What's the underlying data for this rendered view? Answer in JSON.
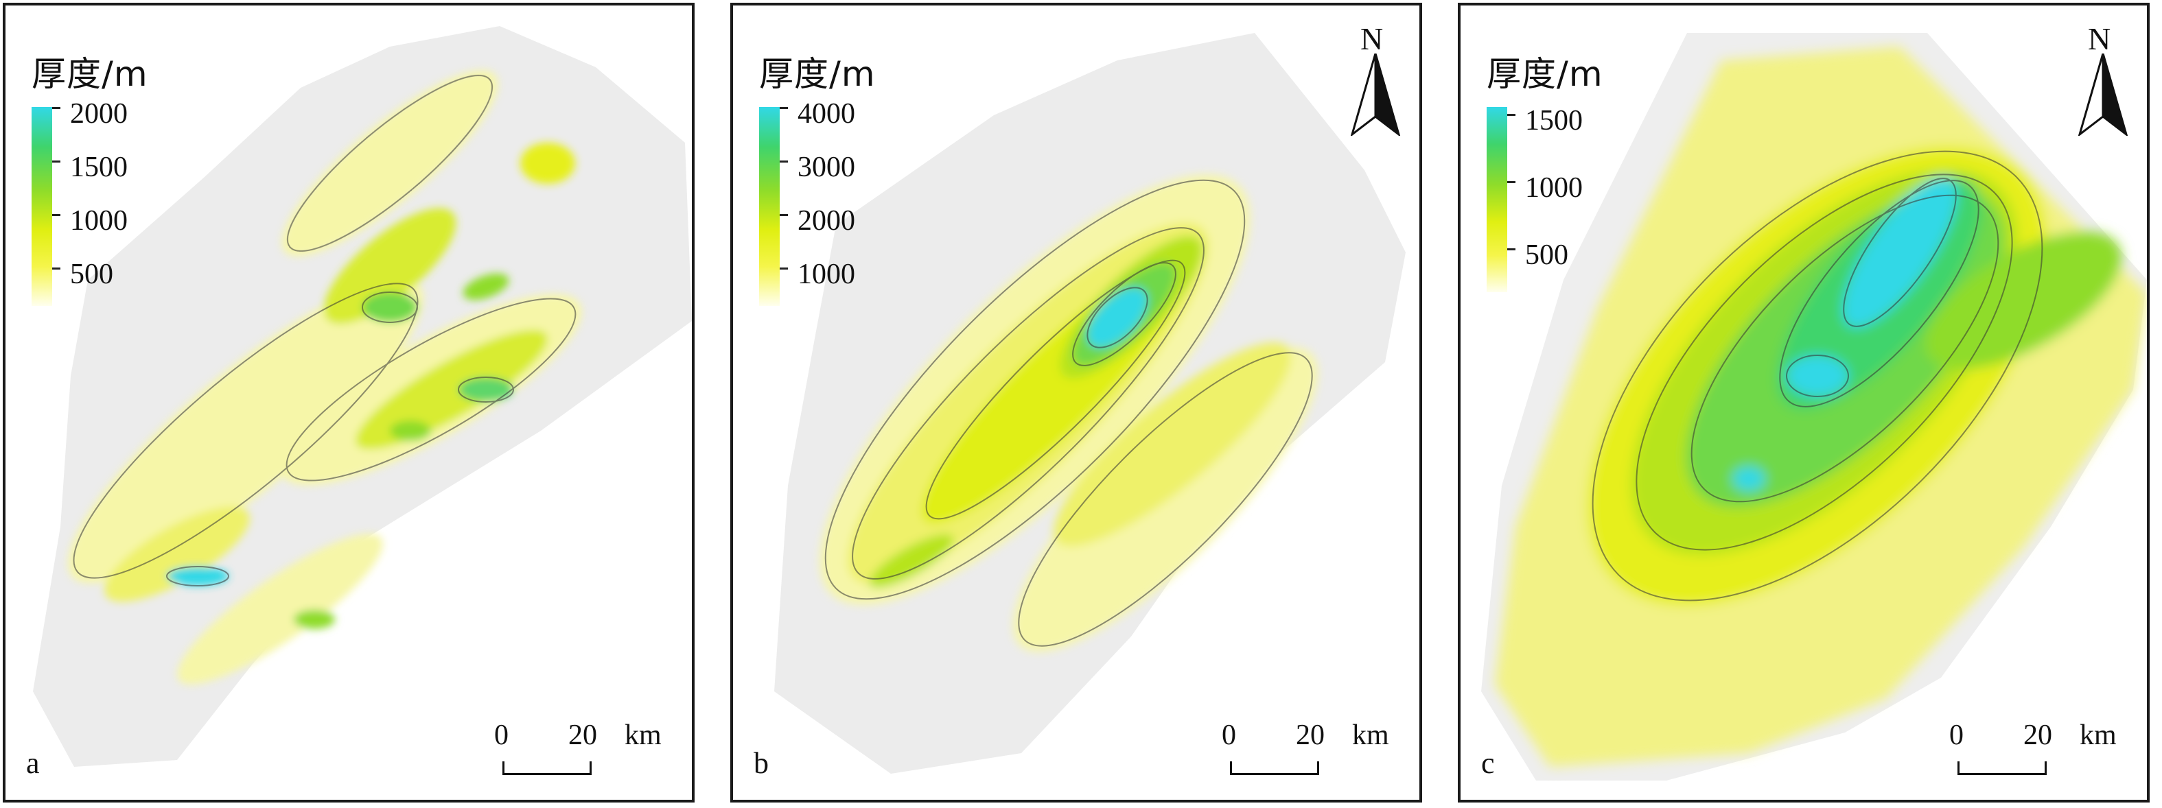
{
  "legend_title": "厚度/m",
  "north_label": "N",
  "scale": {
    "zero": "0",
    "twenty": "20",
    "unit": "km"
  },
  "colors": {
    "low": "#ffffee",
    "mid": "#e6ef1a",
    "high": "#3fd46c",
    "max": "#31d8e6",
    "background": "#eeeeee",
    "contour": "#333333"
  },
  "panels": [
    {
      "letter": "a",
      "ticks": [
        "2000",
        "1500",
        "1000",
        "500"
      ],
      "north_arrow": false
    },
    {
      "letter": "b",
      "ticks": [
        "4000",
        "3000",
        "2000",
        "1000"
      ],
      "north_arrow": true
    },
    {
      "letter": "c",
      "ticks": [
        "1500",
        "1000",
        "500"
      ],
      "north_arrow": true
    }
  ]
}
